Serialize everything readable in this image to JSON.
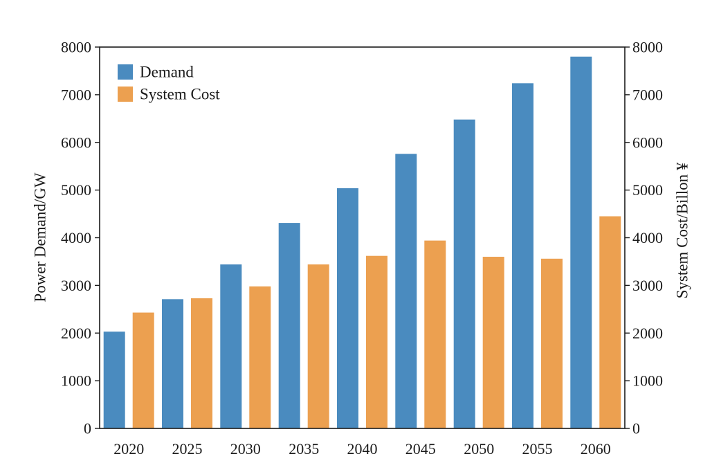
{
  "chart_data": {
    "type": "bar",
    "title": "",
    "categories": [
      "2020",
      "2025",
      "2030",
      "2035",
      "2040",
      "2045",
      "2050",
      "2055",
      "2060"
    ],
    "series": [
      {
        "name": "Demand",
        "axis": "left",
        "color": "#4a8bbf",
        "values": [
          2030,
          2710,
          3440,
          4310,
          5040,
          5760,
          6480,
          7240,
          7800
        ]
      },
      {
        "name": "System Cost",
        "axis": "right",
        "color": "#eca050",
        "values": [
          2430,
          2730,
          2980,
          3440,
          3620,
          3940,
          3600,
          3560,
          4450
        ]
      }
    ],
    "ylabel": "Power Demand/GW",
    "y2label": "System Cost/Billon ¥",
    "ylim": [
      0,
      8000
    ],
    "y2lim": [
      0,
      8000
    ],
    "yticks": [
      0,
      1000,
      2000,
      3000,
      4000,
      5000,
      6000,
      7000,
      8000
    ],
    "y2ticks": [
      0,
      1000,
      2000,
      3000,
      4000,
      5000,
      6000,
      7000,
      8000
    ],
    "grid": false,
    "legend_position": "top-left"
  }
}
